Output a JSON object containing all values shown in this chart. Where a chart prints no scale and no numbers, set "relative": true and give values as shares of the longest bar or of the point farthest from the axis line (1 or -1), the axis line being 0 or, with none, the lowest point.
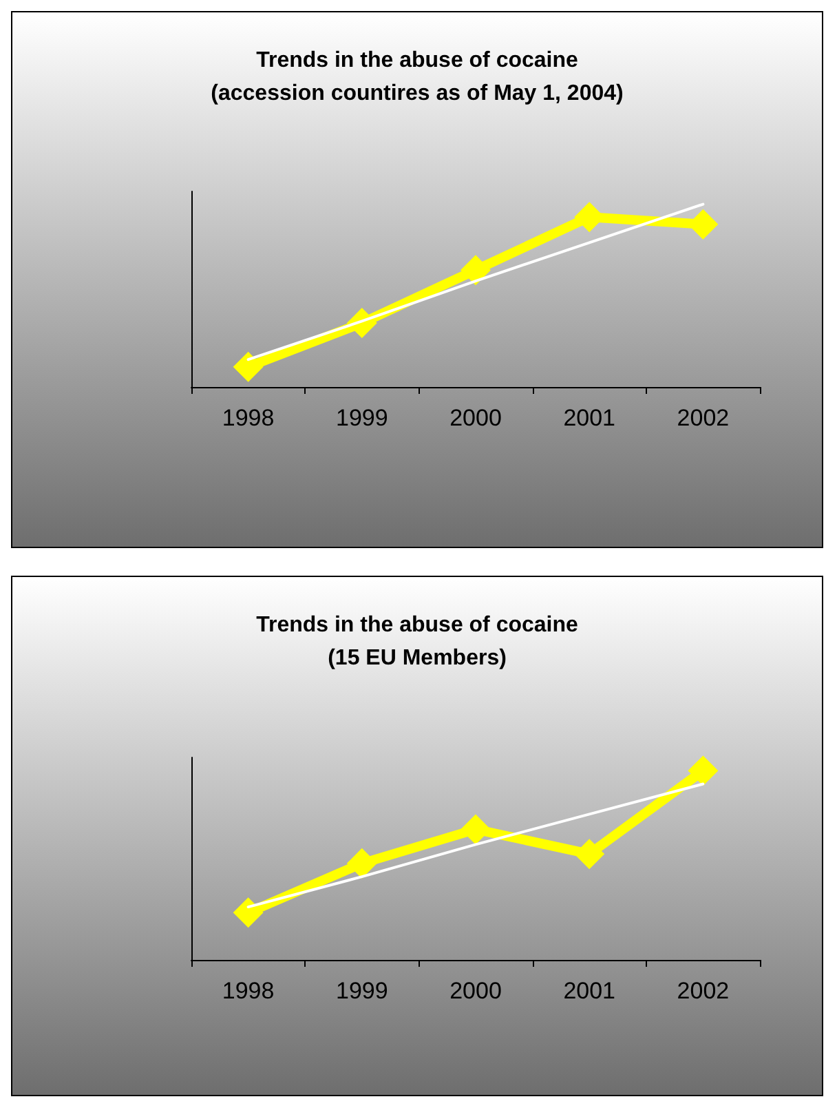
{
  "chart_data": [
    {
      "type": "line",
      "title": "Trends in the abuse of cocaine\n(accession countires as of May 1, 2004)",
      "categories": [
        "1998",
        "1999",
        "2000",
        "2001",
        "2002"
      ],
      "relative": true,
      "grid": false,
      "series": [
        {
          "color": "#ffff00",
          "values": [
            0.11,
            0.35,
            0.64,
            0.93,
            0.89
          ],
          "marker": "diamond",
          "line_style": "solid"
        },
        {
          "color": "#ffffff",
          "values": [
            0.15,
            0.36,
            0.58,
            0.79,
            1.0
          ],
          "marker": "none",
          "line_style": "solid"
        }
      ]
    },
    {
      "type": "line",
      "title": "Trends in the abuse of cocaine\n(15 EU Members)",
      "categories": [
        "1998",
        "1999",
        "2000",
        "2001",
        "2002"
      ],
      "relative": true,
      "grid": false,
      "series": [
        {
          "color": "#ffff00",
          "values": [
            0.25,
            0.51,
            0.69,
            0.56,
            1.0
          ],
          "marker": "diamond",
          "line_style": "solid"
        },
        {
          "color": "#ffffff",
          "values": [
            0.28,
            0.44,
            0.61,
            0.77,
            0.93
          ],
          "marker": "none",
          "line_style": "solid"
        }
      ]
    }
  ]
}
